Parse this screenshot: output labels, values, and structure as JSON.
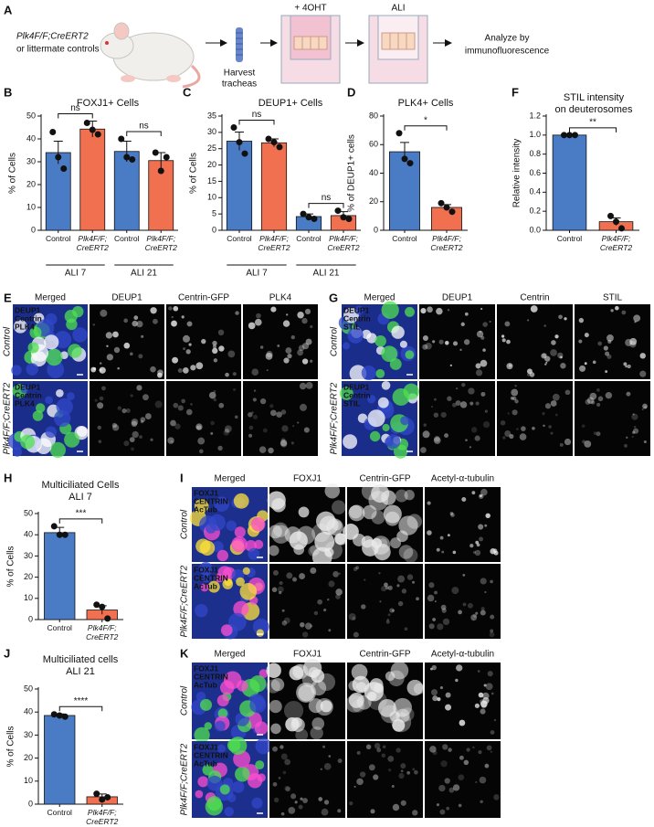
{
  "panel_a": {
    "letter": "A",
    "mouse_line1": "Plk4F/F;CreERT2",
    "mouse_line2": "or littermate controls",
    "step1": [
      "Harvest",
      "tracheas"
    ],
    "treatment": "+ 4OHT",
    "culture": "ALI",
    "analysis": [
      "Analyze by",
      "immunofluorescence"
    ]
  },
  "chart_data": [
    {
      "type": "bar",
      "letter": "B",
      "title": "FOXJ1+ Cells",
      "ylabel": "% of Cells",
      "categories": [
        "Control",
        "Plk4F/F; CreERT2",
        "Control",
        "Plk4F/F; CreERT2"
      ],
      "groups": [
        "ALI 7",
        "ALI 21"
      ],
      "colors": [
        "#4a7cc6",
        "#f07050",
        "#4a7cc6",
        "#f07050"
      ],
      "values": [
        34,
        44.3,
        34.5,
        30.5
      ],
      "errors": [
        5,
        3.5,
        4.5,
        3.5
      ],
      "points": [
        [
          43,
          32,
          27
        ],
        [
          47,
          44,
          42
        ],
        [
          40,
          32,
          31
        ],
        [
          34,
          26,
          32
        ]
      ],
      "ylim": [
        0,
        50
      ],
      "yticks": [
        0,
        10,
        20,
        30,
        40,
        50
      ],
      "significance": [
        "ns",
        "ns"
      ]
    },
    {
      "type": "bar",
      "letter": "C",
      "title": "DEUP1+ Cells",
      "ylabel": "% of Cells",
      "categories": [
        "Control",
        "Plk4F/F; CreERT2",
        "Control",
        "Plk4F/F; CreERT2"
      ],
      "groups": [
        "ALI 7",
        "ALI 21"
      ],
      "colors": [
        "#4a7cc6",
        "#f07050",
        "#4a7cc6",
        "#f07050"
      ],
      "values": [
        27.3,
        26.8,
        4.2,
        4.5
      ],
      "errors": [
        2.8,
        1.2,
        0.8,
        1.2
      ],
      "points": [
        [
          31.5,
          27,
          23.5
        ],
        [
          28,
          27,
          25.5
        ],
        [
          5,
          4,
          3.5
        ],
        [
          6,
          4,
          3.5
        ]
      ],
      "ylim": [
        0,
        35
      ],
      "yticks": [
        0,
        5,
        10,
        15,
        20,
        25,
        30,
        35
      ],
      "significance": [
        "ns",
        "ns"
      ]
    },
    {
      "type": "bar",
      "letter": "D",
      "title": "PLK4+ Cells",
      "ylabel": "% of DEUP1+ cells",
      "categories": [
        "Control",
        "Plk4F/F; CreERT2"
      ],
      "colors": [
        "#4a7cc6",
        "#f07050"
      ],
      "values": [
        55,
        16
      ],
      "errors": [
        6.5,
        2
      ],
      "points": [
        [
          68,
          50,
          47
        ],
        [
          19,
          16,
          13
        ]
      ],
      "ylim": [
        0,
        80
      ],
      "yticks": [
        0,
        20,
        40,
        60,
        80
      ],
      "significance": [
        "*"
      ]
    },
    {
      "type": "bar",
      "letter": "F",
      "title": [
        "STIL intensity",
        "on deuterosomes"
      ],
      "ylabel": "Relative intensity",
      "categories": [
        "Control",
        "Plk4F/F; CreERT2"
      ],
      "colors": [
        "#4a7cc6",
        "#f07050"
      ],
      "values": [
        1.0,
        0.09
      ],
      "errors": [
        0,
        0.04
      ],
      "points": [
        [
          1.0,
          1.0,
          1.0
        ],
        [
          0.15,
          0.09,
          0.02
        ]
      ],
      "ylim": [
        0,
        1.2
      ],
      "yticks": [
        {
          "value": 0,
          "label": "0.0"
        },
        0.2,
        0.4,
        0.6,
        0.8,
        {
          "value": 1,
          "label": "1.0"
        },
        1.2
      ],
      "significance": [
        "**"
      ]
    },
    {
      "type": "bar",
      "letter": "H",
      "title": [
        "Multiciliated Cells",
        "ALI 7"
      ],
      "ylabel": "% of Cells",
      "categories": [
        "Control",
        "Plk4F/F; CreERT2"
      ],
      "colors": [
        "#4a7cc6",
        "#f07050"
      ],
      "values": [
        41,
        4.5
      ],
      "errors": [
        2.5,
        2
      ],
      "points": [
        [
          44,
          40,
          40
        ],
        [
          7,
          6,
          0.5
        ]
      ],
      "ylim": [
        0,
        50
      ],
      "yticks": [
        0,
        10,
        20,
        30,
        40,
        50
      ],
      "significance": [
        "***"
      ]
    },
    {
      "type": "bar",
      "letter": "J",
      "title": [
        "Multiciliated cells",
        "ALI 21"
      ],
      "ylabel": "% of Cells",
      "categories": [
        "Control",
        "Plk4F/F; CreERT2"
      ],
      "colors": [
        "#4a7cc6",
        "#f07050"
      ],
      "values": [
        38.5,
        3.2
      ],
      "errors": [
        0.7,
        1.2
      ],
      "points": [
        [
          39,
          38.5,
          38
        ],
        [
          4.5,
          2,
          3
        ]
      ],
      "ylim": [
        0,
        50
      ],
      "yticks": [
        0,
        10,
        20,
        30,
        40,
        50
      ],
      "significance": [
        "****"
      ]
    }
  ],
  "image_panels": [
    {
      "letter": "E",
      "columns": [
        "Merged",
        "DEUP1",
        "Centrin-GFP",
        "PLK4"
      ],
      "rows": [
        "Control",
        "Plk4F/F;CreERT2"
      ],
      "overlays": [
        [
          "DEUP1",
          "Centrin",
          "PLK4"
        ],
        [
          "DEUP1",
          "Centrin",
          "PLK4"
        ]
      ]
    },
    {
      "letter": "G",
      "columns": [
        "Merged",
        "DEUP1",
        "Centrin",
        "STIL"
      ],
      "rows": [
        "Control",
        "Plk4F/F;CreERT2"
      ],
      "overlays": [
        [
          "DEUP1",
          "Centrin",
          "STIL"
        ],
        [
          "DEUP1",
          "Centrin",
          "STIL"
        ]
      ]
    },
    {
      "letter": "I",
      "columns": [
        "Merged",
        "FOXJ1",
        "Centrin-GFP",
        "Acetyl-α-tubulin"
      ],
      "rows": [
        "Control",
        "Plk4F/F;CreERT2"
      ],
      "overlays": [
        [
          "FOXJ1",
          "CENTRIN",
          "AcTub"
        ],
        [
          "FOXJ1",
          "CENTRIN",
          "AcTub"
        ]
      ]
    },
    {
      "letter": "K",
      "columns": [
        "Merged",
        "FOXJ1",
        "Centrin-GFP",
        "Acetyl-α-tubulin"
      ],
      "rows": [
        "Control",
        "Plk4F/F;CreERT2"
      ],
      "overlays": [
        [
          "FOXJ1",
          "CENTRIN",
          "AcTub"
        ],
        [
          "FOXJ1",
          "CENTRIN",
          "AcTub"
        ]
      ]
    }
  ]
}
